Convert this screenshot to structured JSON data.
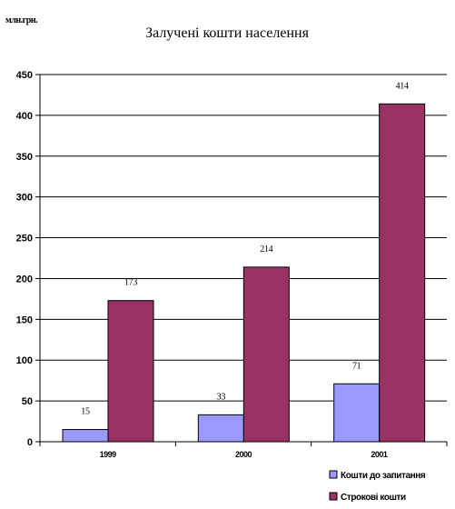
{
  "chart_data": {
    "type": "bar",
    "title": "Залучені кошти населення",
    "unit_label": "млн.грн.",
    "categories": [
      "1999",
      "2000",
      "2001"
    ],
    "series": [
      {
        "name": "Кошти до запитання",
        "values": [
          15,
          33,
          71
        ],
        "color": "#9999ff"
      },
      {
        "name": "Строкові кошти",
        "values": [
          173,
          214,
          414
        ],
        "color": "#993366"
      }
    ],
    "data_labels": [
      [
        "15",
        "33",
        "71"
      ],
      [
        "173",
        "214",
        "414"
      ]
    ],
    "ylim": [
      0,
      450
    ],
    "yticks": [
      "0",
      "50",
      "100",
      "150",
      "200",
      "250",
      "300",
      "350",
      "400",
      "450"
    ],
    "grid": true,
    "legend": "bottom-right"
  }
}
